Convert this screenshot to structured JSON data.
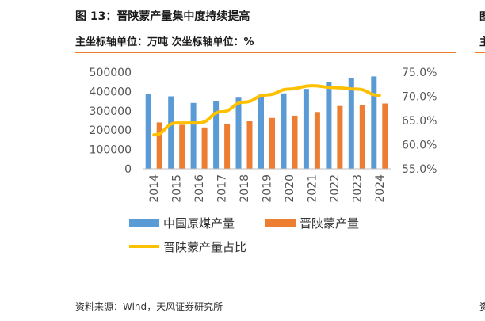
{
  "header": {
    "title": "图 13：晋陕蒙产量集中度持续提高",
    "subtitle": "主坐标轴单位：万吨 次坐标轴单位：%"
  },
  "source": "资料来源：Wind，天风证券研究所",
  "edge_clip": {
    "title_char": "图",
    "subtitle_char": "主",
    "source_char": "资"
  },
  "colors": {
    "accent": "#ea7d32",
    "china_bar": "#5b9bd5",
    "jsm_bar": "#ed7d31",
    "share_line": "#ffc000"
  },
  "chart_data": {
    "type": "bar",
    "categories": [
      "2014",
      "2015",
      "2016",
      "2017",
      "2018",
      "2019",
      "2020",
      "2021",
      "2022",
      "2023",
      "2024"
    ],
    "series": [
      {
        "name": "中国原煤产量",
        "type": "bar",
        "axis": "left",
        "values": [
          387000,
          375000,
          341000,
          352000,
          368000,
          384000,
          390000,
          413000,
          450000,
          471000,
          478000
        ]
      },
      {
        "name": "晋陕蒙产量",
        "type": "bar",
        "axis": "left",
        "values": [
          240000,
          228000,
          214000,
          233000,
          246000,
          263000,
          275000,
          294000,
          325000,
          331000,
          338000
        ]
      },
      {
        "name": "晋陕蒙产量占比",
        "type": "line",
        "axis": "right",
        "values": [
          62.0,
          64.5,
          64.5,
          66.8,
          68.8,
          70.3,
          71.5,
          72.2,
          71.8,
          71.5,
          70.2
        ]
      }
    ],
    "ylim": [
      0,
      500000
    ],
    "y_ticks": [
      "500000",
      "400000",
      "300000",
      "200000",
      "100000",
      "0"
    ],
    "y2lim": [
      55,
      75
    ],
    "y2_ticks": [
      "75.0%",
      "70.0%",
      "65.0%",
      "60.0%",
      "55.0%"
    ],
    "grid": false,
    "legend": "bottom"
  }
}
